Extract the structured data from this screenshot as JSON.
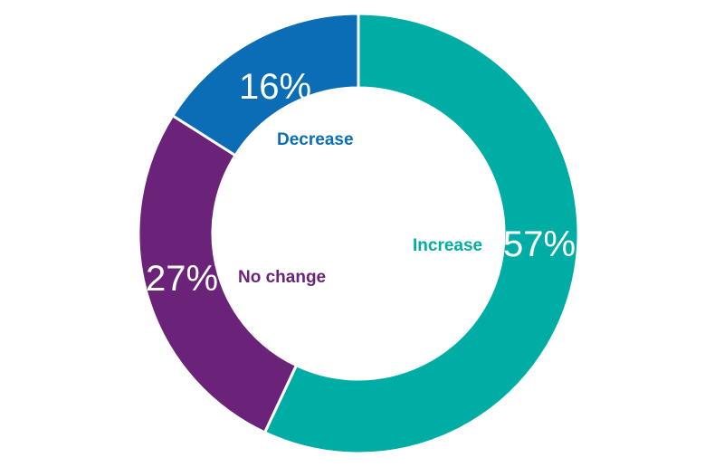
{
  "chart_data": {
    "type": "pie",
    "donut": true,
    "categories": [
      "Increase",
      "No change",
      "Decrease"
    ],
    "values": [
      57,
      27,
      16
    ],
    "value_labels": [
      "57%",
      "27%",
      "16%"
    ],
    "colors": [
      "#00ADA4",
      "#6B2379",
      "#0A6DB6"
    ],
    "start": "top",
    "direction": "clockwise",
    "legend": "none"
  }
}
